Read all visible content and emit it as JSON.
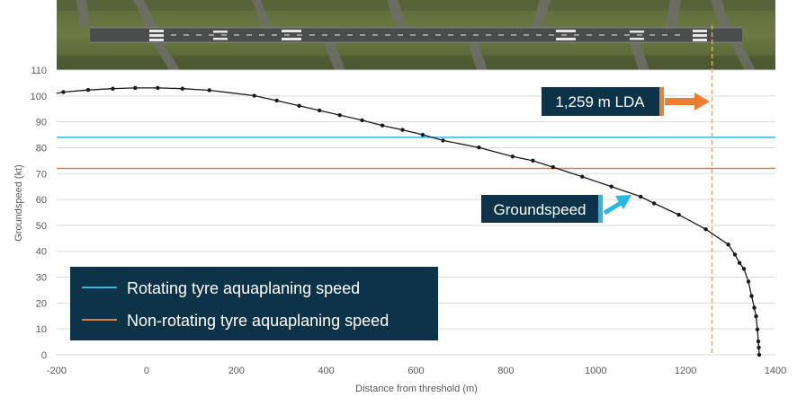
{
  "chart_data": {
    "type": "line",
    "xlabel": "Distance from threshold (m)",
    "ylabel": "Groundspeed (kt)",
    "xlim": [
      -200,
      1400
    ],
    "ylim": [
      0,
      110
    ],
    "xticks": [
      -200,
      0,
      200,
      400,
      600,
      800,
      1000,
      1200,
      1400
    ],
    "yticks": [
      0,
      10,
      20,
      30,
      40,
      50,
      60,
      70,
      80,
      90,
      100,
      110
    ],
    "grid": "horizontal",
    "series": [
      {
        "name": "Groundspeed",
        "color": "#1a1a1a",
        "marker": "dot",
        "points": [
          [
            -200,
            101
          ],
          [
            -185,
            101.5
          ],
          [
            -130,
            102.3
          ],
          [
            -75,
            102.8
          ],
          [
            -25,
            103.1
          ],
          [
            25,
            103.1
          ],
          [
            80,
            102.8
          ],
          [
            140,
            102.2
          ],
          [
            240,
            100.1
          ],
          [
            290,
            98.2
          ],
          [
            340,
            96.2
          ],
          [
            385,
            94.4
          ],
          [
            430,
            92.6
          ],
          [
            480,
            90.6
          ],
          [
            525,
            88.6
          ],
          [
            570,
            86.9
          ],
          [
            615,
            85.0
          ],
          [
            660,
            82.8
          ],
          [
            740,
            80.1
          ],
          [
            815,
            76.6
          ],
          [
            860,
            75.0
          ],
          [
            905,
            72.5
          ],
          [
            970,
            68.8
          ],
          [
            1035,
            65.0
          ],
          [
            1100,
            61.1
          ],
          [
            1130,
            58.5
          ],
          [
            1185,
            54.1
          ],
          [
            1245,
            48.5
          ],
          [
            1295,
            42.6
          ],
          [
            1310,
            38.7
          ],
          [
            1320,
            35.5
          ],
          [
            1330,
            33.2
          ],
          [
            1340,
            28.3
          ],
          [
            1347,
            22.7
          ],
          [
            1353,
            18.2
          ],
          [
            1357,
            14.9
          ],
          [
            1360,
            9.8
          ],
          [
            1362,
            5.2
          ],
          [
            1363,
            2.8
          ],
          [
            1364,
            0.0
          ]
        ]
      },
      {
        "name": "Rotating tyre aquaplaning speed",
        "color": "#31b8e0",
        "constant": 84
      },
      {
        "name": "Non-rotating tyre aquaplaning speed",
        "color": "#e07b39",
        "constant": 72
      }
    ],
    "lda_line": {
      "x": 1259,
      "color": "#f0b020"
    },
    "annotations": {
      "lda_label": "1,259 m LDA",
      "groundspeed_label": "Groundspeed"
    },
    "legend": {
      "placement": "bottom-left",
      "entries": [
        {
          "label": "Rotating tyre aquaplaning speed",
          "color": "#31b8e0"
        },
        {
          "label": "Non-rotating tyre aquaplaning speed",
          "color": "#e07b39"
        }
      ]
    }
  },
  "colors": {
    "callout_bg": "#0d3349",
    "arrow_orange": "#ed7d31",
    "arrow_cyan": "#29b6e3",
    "grid": "#d9d9d9"
  }
}
